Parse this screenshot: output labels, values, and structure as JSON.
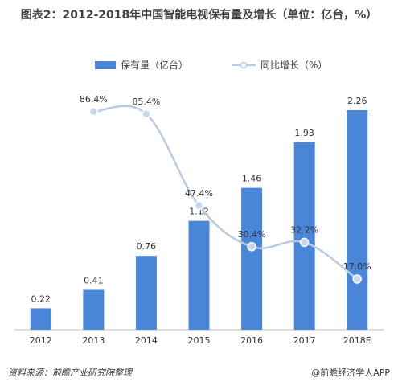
{
  "title": "图表2：2012-2018年中国智能电视保有量及增长（单位：亿台，%）",
  "source": "资料来源：前瞻产业研究院整理",
  "footer_brand": "@前瞻经济学人APP",
  "colors": {
    "bar": "#4a86d8",
    "line": "#b8cbe6",
    "marker": "#c7d8ee"
  },
  "chart_data": {
    "type": "bar",
    "categories": [
      "2012",
      "2013",
      "2014",
      "2015",
      "2016",
      "2017",
      "2018E"
    ],
    "series": [
      {
        "name": "保有量（亿台）",
        "type": "bar",
        "values": [
          0.22,
          0.41,
          0.76,
          1.12,
          1.46,
          1.93,
          2.26
        ],
        "labels": [
          "0.22",
          "0.41",
          "0.76",
          "1.12",
          "1.46",
          "1.93",
          "2.26"
        ]
      },
      {
        "name": "同比增长（%）",
        "type": "line",
        "values": [
          null,
          86.4,
          85.4,
          47.4,
          30.4,
          32.2,
          17.0
        ],
        "labels": [
          "",
          "86.4%",
          "85.4%",
          "47.4%",
          "30.4%",
          "32.2%",
          "17.0%"
        ]
      }
    ],
    "ylim_bar": [
      0,
      2.4
    ],
    "ylim_line": [
      0,
      100
    ],
    "legend_position": "top",
    "grid": false
  }
}
